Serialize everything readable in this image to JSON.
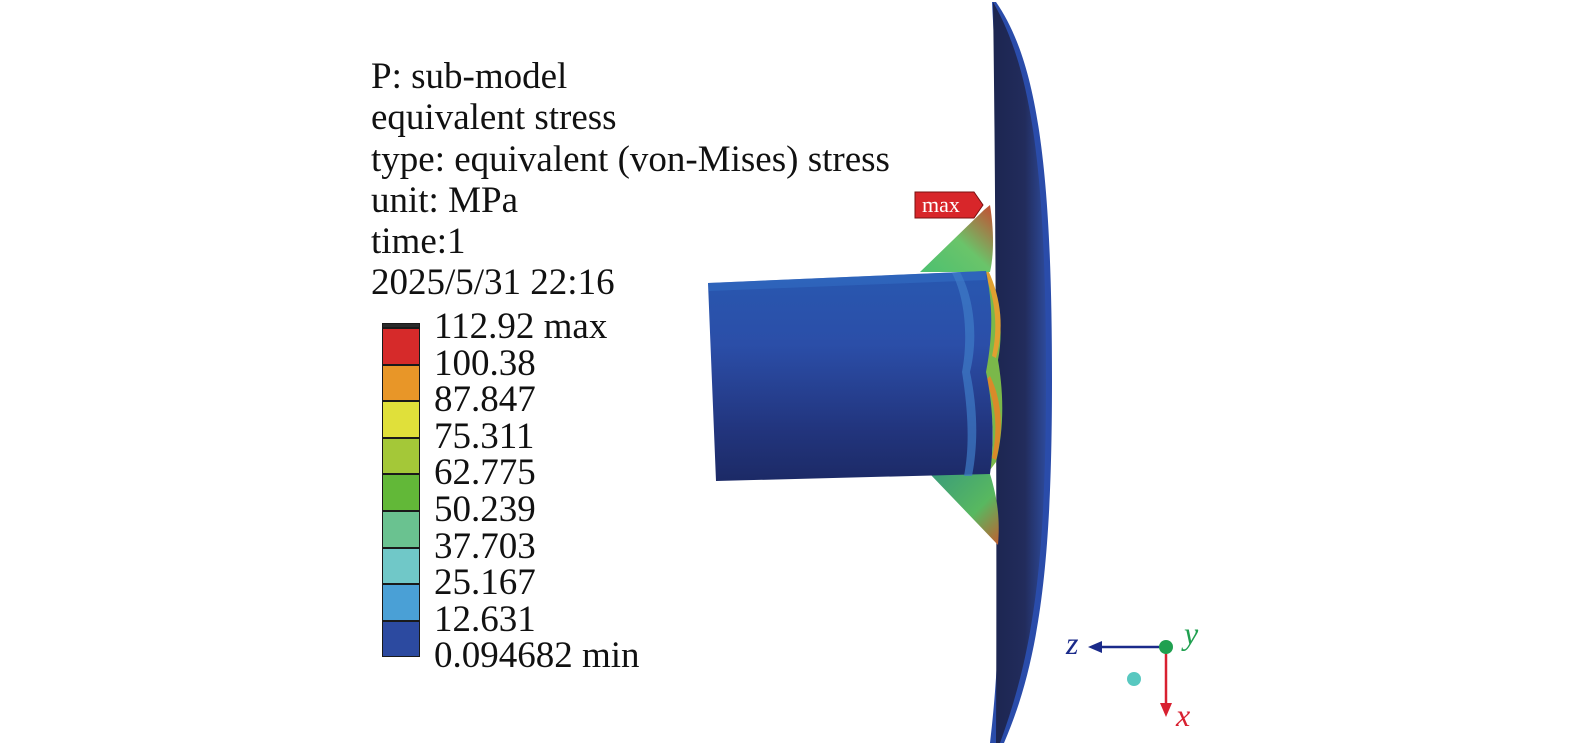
{
  "header": {
    "lines": [
      "P: sub-model",
      "equivalent stress",
      "type: equivalent (von-Mises) stress",
      "unit: MPa",
      "time:1",
      "2025/5/31 22:16"
    ]
  },
  "legend": {
    "labels": [
      "112.92 max",
      "100.38",
      "87.847",
      "75.311",
      "62.775",
      "50.239",
      "37.703",
      "25.167",
      "12.631",
      "0.094682 min"
    ],
    "colors": [
      "#d62a2a",
      "#e89628",
      "#e0e03a",
      "#a4c838",
      "#62b838",
      "#6ac290",
      "#70c8c8",
      "#4aa0d6",
      "#2c4aa0"
    ]
  },
  "probe": {
    "label": "max"
  },
  "triad": {
    "z": "z",
    "y": "y",
    "x": "x"
  }
}
